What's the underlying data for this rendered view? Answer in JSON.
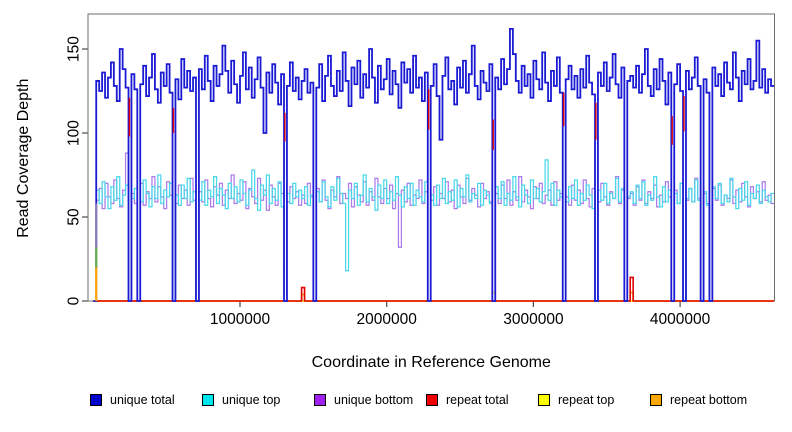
{
  "chart_data": {
    "type": "line",
    "title": "",
    "xlabel": "Coordinate in Reference Genome",
    "ylabel": "Read Coverage Depth",
    "xlim": [
      0,
      4641652
    ],
    "ylim": [
      0,
      171
    ],
    "grid": false,
    "legend_position": "bottom",
    "bin_size": 20000,
    "x_ticks": [
      {
        "value": 1000000,
        "label": "1000000"
      },
      {
        "value": 2000000,
        "label": "2000000"
      },
      {
        "value": 3000000,
        "label": "3000000"
      },
      {
        "value": 4000000,
        "label": "4000000"
      }
    ],
    "y_ticks": [
      {
        "value": 0,
        "label": "0"
      },
      {
        "value": 50,
        "label": "50"
      },
      {
        "value": 100,
        "label": "100"
      },
      {
        "value": 150,
        "label": "150"
      }
    ],
    "style": {
      "plot_border_color": "#6e6e6e",
      "tick_color": "#4a4a4a",
      "text_color": "#000000",
      "background": "#ffffff"
    },
    "series": [
      {
        "name": "repeat top",
        "legend_color": "#FFFF00",
        "line_color": "#FFEE00",
        "width": 1.4,
        "sparse": {
          "length": 232,
          "default": 0,
          "points": {
            "136": 5
          }
        }
      },
      {
        "name": "repeat bottom",
        "legend_color": "#FFA500",
        "line_color": "#FFA500",
        "width": 1.6,
        "sparse": {
          "length": 232,
          "default": 0,
          "points": {
            "71": 4,
            "183": 5
          }
        }
      },
      {
        "name": "repeat total",
        "legend_color": "#EE0000",
        "line_color": "#E00000",
        "width": 1.6,
        "sparse": {
          "length": 232,
          "default": 0,
          "points": {
            "71": 8,
            "183": 14
          }
        }
      },
      {
        "name": "unique bottom",
        "legend_color": "#A020F0",
        "line_color": "#AB7BE8",
        "width": 1.25,
        "values": [
          0,
          60,
          67,
          55,
          70,
          62,
          58,
          72,
          61,
          56,
          66,
          88,
          0,
          64,
          58,
          0,
          70,
          57,
          65,
          61,
          74,
          59,
          68,
          62,
          55,
          71,
          63,
          0,
          58,
          69,
          61,
          66,
          57,
          73,
          60,
          0,
          65,
          59,
          72,
          61,
          56,
          68,
          63,
          70,
          57,
          66,
          61,
          75,
          58,
          64,
          60,
          71,
          55,
          67,
          62,
          58,
          73,
          60,
          66,
          54,
          69,
          62,
          57,
          70,
          64,
          0,
          59,
          68,
          61,
          65,
          57,
          63,
          58,
          70,
          62,
          0,
          67,
          59,
          72,
          60,
          55,
          66,
          62,
          74,
          58,
          64,
          61,
          70,
          56,
          68,
          63,
          59,
          71,
          57,
          65,
          60,
          73,
          62,
          58,
          67,
          61,
          69,
          55,
          64,
          32,
          66,
          59,
          70,
          57,
          63,
          61,
          72,
          58,
          65,
          0,
          60,
          68,
          57,
          64,
          61,
          71,
          59,
          66,
          55,
          69,
          62,
          58,
          73,
          60,
          67,
          63,
          56,
          70,
          61,
          65,
          59,
          0,
          64,
          58,
          69,
          61,
          72,
          57,
          65,
          60,
          74,
          59,
          66,
          62,
          55,
          68,
          61,
          70,
          58,
          63,
          66,
          57,
          71,
          60,
          64,
          0,
          62,
          57,
          69,
          60,
          66,
          58,
          72,
          61,
          56,
          67,
          0,
          59,
          70,
          62,
          57,
          65,
          61,
          74,
          58,
          66,
          0,
          61,
          64,
          57,
          68,
          60,
          72,
          58,
          65,
          61,
          69,
          56,
          63,
          59,
          71,
          62,
          0,
          66,
          58,
          70,
          0,
          60,
          67,
          59,
          73,
          61,
          0,
          64,
          58,
          0,
          67,
          60,
          69,
          57,
          63,
          61,
          72,
          58,
          66,
          59,
          70,
          62,
          56,
          68,
          61,
          65,
          59,
          71,
          60,
          63,
          58
        ]
      },
      {
        "name": "unique top",
        "legend_color": "#00E5EE",
        "line_color": "#49D8E8",
        "width": 1.25,
        "values": [
          0,
          66,
          58,
          71,
          62,
          55,
          68,
          60,
          74,
          57,
          63,
          69,
          0,
          61,
          67,
          0,
          59,
          72,
          64,
          56,
          68,
          61,
          75,
          58,
          66,
          62,
          70,
          0,
          63,
          57,
          69,
          61,
          73,
          59,
          65,
          0,
          60,
          71,
          57,
          66,
          62,
          74,
          58,
          67,
          63,
          55,
          70,
          61,
          68,
          59,
          72,
          64,
          57,
          66,
          78,
          61,
          54,
          69,
          63,
          75,
          58,
          67,
          60,
          71,
          56,
          0,
          64,
          58,
          70,
          62,
          66,
          61,
          68,
          57,
          63,
          0,
          65,
          59,
          71,
          62,
          56,
          68,
          60,
          73,
          64,
          58,
          18,
          66,
          61,
          70,
          57,
          63,
          75,
          59,
          67,
          62,
          54,
          69,
          61,
          72,
          58,
          65,
          60,
          74,
          63,
          56,
          68,
          61,
          70,
          57,
          66,
          62,
          59,
          71,
          0,
          63,
          57,
          69,
          61,
          73,
          58,
          65,
          60,
          72,
          56,
          67,
          62,
          75,
          59,
          64,
          61,
          70,
          57,
          66,
          63,
          58,
          0,
          68,
          61,
          71,
          57,
          64,
          60,
          74,
          62,
          56,
          69,
          63,
          58,
          72,
          61,
          67,
          59,
          65,
          84,
          60,
          70,
          57,
          66,
          62,
          0,
          59,
          68,
          61,
          72,
          57,
          64,
          60,
          69,
          63,
          55,
          0,
          66,
          60,
          70,
          58,
          64,
          61,
          73,
          59,
          67,
          0,
          62,
          65,
          58,
          69,
          61,
          71,
          57,
          63,
          60,
          74,
          62,
          56,
          68,
          59,
          66,
          0,
          64,
          58,
          70,
          0,
          61,
          67,
          59,
          72,
          60,
          0,
          65,
          57,
          0,
          68,
          61,
          70,
          58,
          63,
          59,
          73,
          62,
          55,
          67,
          60,
          71,
          57,
          64,
          61,
          69,
          58,
          66,
          62,
          59,
          64
        ]
      },
      {
        "name": "unique total",
        "legend_color": "#0000CC",
        "line_color": "#1A1AD4",
        "width": 1.8,
        "values": [
          0,
          131,
          125,
          136,
          121,
          133,
          142,
          128,
          119,
          150,
          138,
          127,
          0,
          135,
          126,
          0,
          129,
          140,
          122,
          133,
          147,
          126,
          118,
          136,
          128,
          141,
          124,
          0,
          132,
          120,
          144,
          127,
          137,
          125,
          133,
          0,
          138,
          126,
          146,
          131,
          119,
          140,
          128,
          135,
          152,
          137,
          124,
          143,
          129,
          118,
          134,
          148,
          126,
          139,
          121,
          132,
          145,
          127,
          100,
          136,
          124,
          141,
          130,
          117,
          135,
          0,
          128,
          142,
          125,
          133,
          120,
          131,
          138,
          124,
          130,
          0,
          127,
          141,
          119,
          134,
          146,
          128,
          122,
          137,
          125,
          148,
          131,
          116,
          139,
          129,
          143,
          121,
          135,
          127,
          150,
          133,
          118,
          140,
          126,
          132,
          144,
          123,
          137,
          129,
          115,
          142,
          130,
          138,
          124,
          146,
          127,
          133,
          119,
          136,
          0,
          128,
          141,
          122,
          96,
          134,
          145,
          126,
          131,
          117,
          139,
          127,
          143,
          124,
          135,
          152,
          128,
          120,
          137,
          130,
          125,
          141,
          0,
          133,
          126,
          144,
          129,
          138,
          162,
          147,
          131,
          124,
          140,
          128,
          135,
          121,
          143,
          132,
          126,
          148,
          130,
          119,
          137,
          128,
          145,
          124,
          0,
          132,
          140,
          126,
          134,
          121,
          138,
          127,
          146,
          130,
          123,
          0,
          136,
          128,
          142,
          125,
          133,
          147,
          129,
          121,
          139,
          0,
          131,
          134,
          127,
          140,
          124,
          135,
          150,
          128,
          122,
          138,
          126,
          144,
          131,
          117,
          136,
          0,
          129,
          141,
          125,
          0,
          137,
          126,
          133,
          145,
          128,
          0,
          132,
          124,
          0,
          139,
          128,
          135,
          122,
          142,
          130,
          126,
          148,
          133,
          119,
          137,
          129,
          144,
          126,
          131,
          155,
          127,
          138,
          124,
          132,
          128
        ]
      }
    ],
    "repeat_total_tips": [
      {
        "i": 12,
        "v1": 98,
        "v2": 121
      },
      {
        "i": 27,
        "v1": 100,
        "v2": 115
      },
      {
        "i": 65,
        "v1": 95,
        "v2": 112
      },
      {
        "i": 114,
        "v1": 102,
        "v2": 126
      },
      {
        "i": 136,
        "v1": 90,
        "v2": 108
      },
      {
        "i": 160,
        "v1": 104,
        "v2": 124
      },
      {
        "i": 171,
        "v1": 96,
        "v2": 118
      },
      {
        "i": 197,
        "v1": 93,
        "v2": 110
      },
      {
        "i": 201,
        "v1": 101,
        "v2": 122
      }
    ],
    "start_column_segments": [
      {
        "color": "#FFA500",
        "v1": 0,
        "v2": 20
      },
      {
        "color": "#66B04D",
        "v1": 20,
        "v2": 32
      },
      {
        "color": "#8A7AB8",
        "v1": 32,
        "v2": 58
      }
    ]
  },
  "legend": {
    "items": [
      {
        "label": "unique total",
        "color": "#0000CC"
      },
      {
        "label": "unique top",
        "color": "#00E5EE"
      },
      {
        "label": "unique bottom",
        "color": "#A020F0"
      },
      {
        "label": "repeat total",
        "color": "#EE0000"
      },
      {
        "label": "repeat top",
        "color": "#FFFF00"
      },
      {
        "label": "repeat bottom",
        "color": "#FFA500"
      }
    ]
  }
}
